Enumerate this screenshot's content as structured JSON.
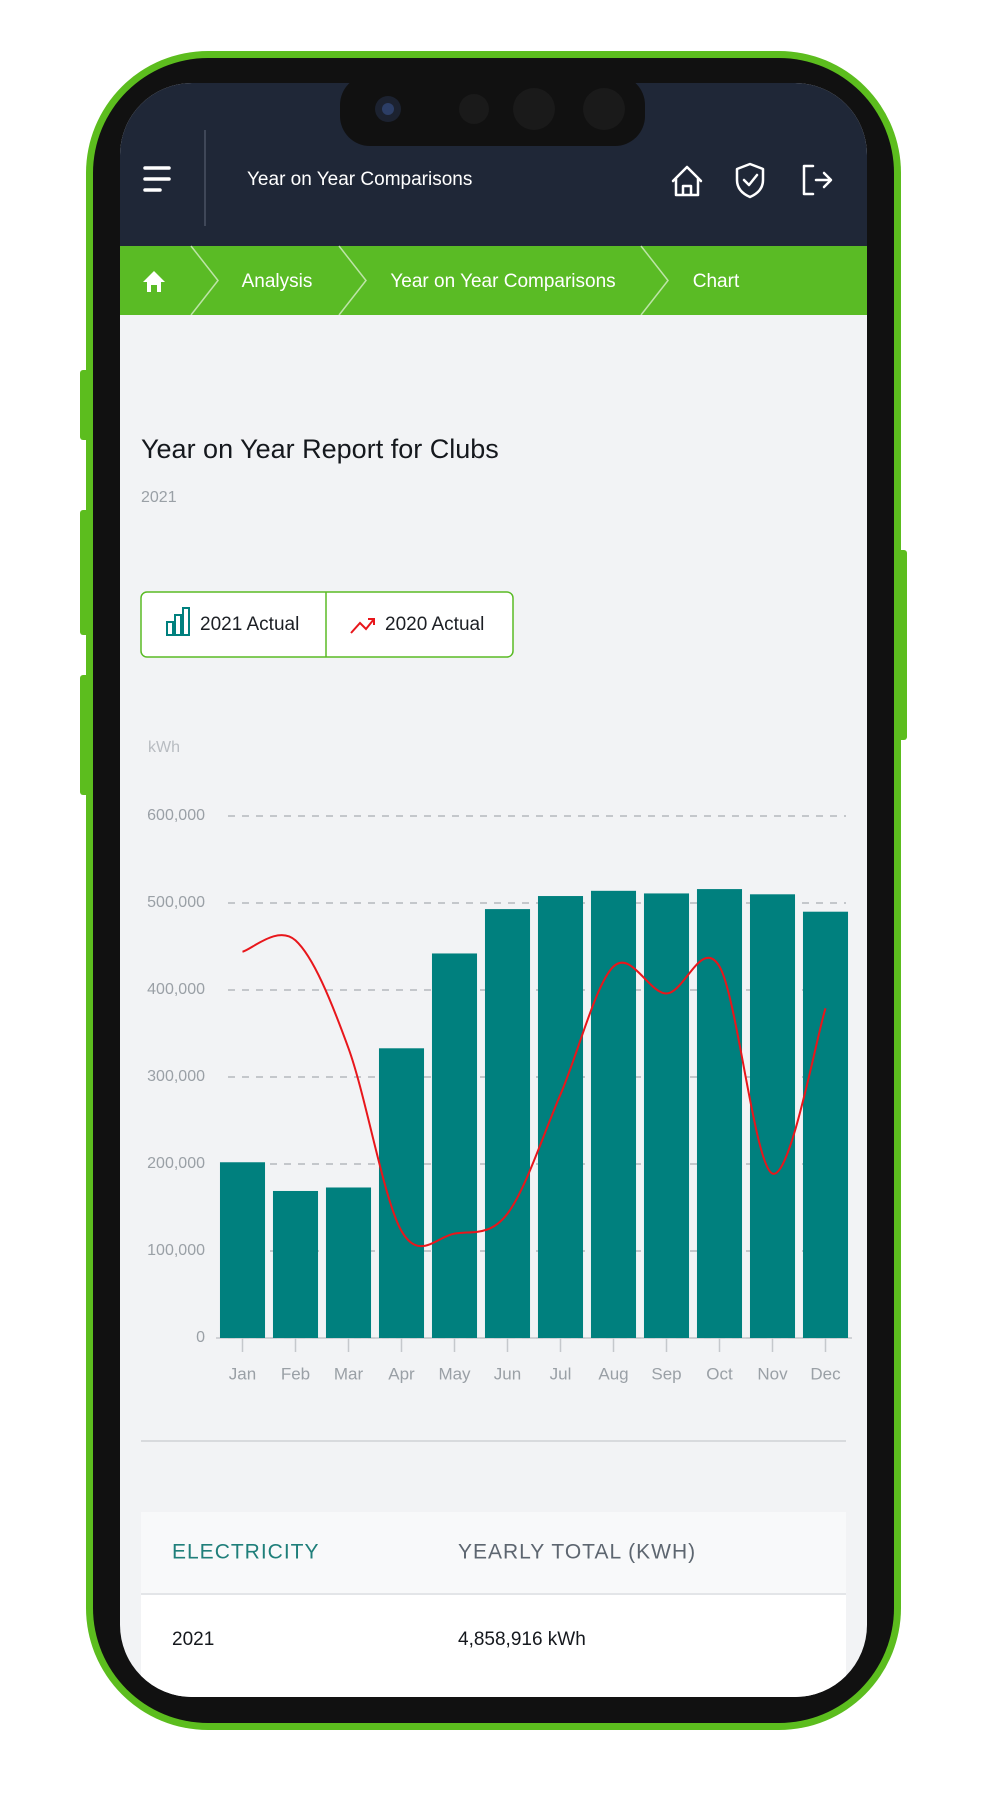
{
  "nav": {
    "title": "Year on Year Comparisons"
  },
  "breadcrumbs": [
    "Analysis",
    "Year on Year Comparisons",
    "Chart"
  ],
  "report": {
    "title": "Year on Year Report for Clubs",
    "subtitle": "2021"
  },
  "chart_data": {
    "type": "bar",
    "y_label": "kWh",
    "categories": [
      "Jan",
      "Feb",
      "Mar",
      "Apr",
      "May",
      "Jun",
      "Jul",
      "Aug",
      "Sep",
      "Oct",
      "Nov",
      "Dec"
    ],
    "series": [
      {
        "name": "2021 Actual",
        "type": "bar",
        "color": "#00807e",
        "values": [
          202000,
          169000,
          173000,
          333000,
          442000,
          493000,
          508000,
          514000,
          511000,
          516000,
          510000,
          490000
        ]
      },
      {
        "name": "2020 Actual",
        "type": "line",
        "color": "#e8161b",
        "values": [
          444000,
          457000,
          333000,
          123000,
          120000,
          143000,
          280000,
          427000,
          396000,
          427000,
          189000,
          379000
        ]
      }
    ],
    "ylim": [
      0,
      600000
    ],
    "yticks": [
      0,
      {
        "value": 100000,
        "label": "100,000"
      },
      {
        "value": 200000,
        "label": "200,000"
      },
      {
        "value": 300000,
        "label": "300,000"
      },
      {
        "value": 400000,
        "label": "400,000"
      },
      {
        "value": 500000,
        "label": "500,000"
      },
      {
        "value": 600000,
        "label": "600,000"
      }
    ],
    "grid": true
  },
  "table": {
    "headers": [
      "ELECTRICITY",
      "YEARLY TOTAL (KWH)"
    ],
    "rows": [
      [
        "2021",
        "4,858,916 kWh"
      ]
    ]
  }
}
